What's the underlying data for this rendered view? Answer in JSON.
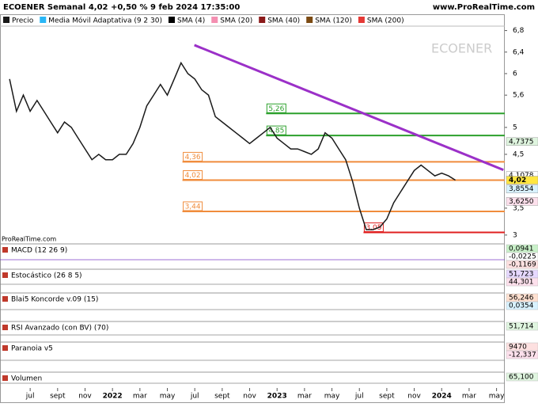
{
  "header": {
    "title": "ECOENER Semanal 4,02 +0,50 % 9 feb 2024 17:35:00",
    "site": "www.ProRealTime.com"
  },
  "chart_data": {
    "type": "line",
    "watermark": "ECOENER",
    "source": "ProRealTime.com",
    "x": [
      -1.5,
      -1,
      -0.5,
      0,
      0.5,
      1,
      1.5,
      2,
      2.5,
      3,
      3.5,
      4,
      4.5,
      5,
      5.5,
      6,
      6.5,
      7,
      7.5,
      8,
      8.5,
      9,
      9.5,
      10,
      10.5,
      11,
      11.5,
      12,
      12.5,
      13,
      13.5,
      14,
      14.5,
      15,
      15.5,
      16,
      16.5,
      17,
      17.5,
      18,
      18.5,
      19,
      19.5,
      20,
      20.5,
      21,
      21.5,
      22,
      22.5,
      23,
      23.5,
      24,
      24.5,
      25,
      25.5,
      26,
      26.5,
      27,
      27.5,
      28,
      28.5,
      29,
      29.5,
      30,
      30.5,
      31
    ],
    "series": [
      {
        "name": "Precio",
        "color": "#1a1a1a",
        "values": [
          5.9,
          5.3,
          5.6,
          5.3,
          5.5,
          5.3,
          5.1,
          4.9,
          5.1,
          5.0,
          4.8,
          4.6,
          4.4,
          4.5,
          4.4,
          4.4,
          4.5,
          4.5,
          4.7,
          5.0,
          5.4,
          5.6,
          5.8,
          5.6,
          5.9,
          6.2,
          6.0,
          5.9,
          5.7,
          5.6,
          5.2,
          5.1,
          5.0,
          4.9,
          4.8,
          4.7,
          4.8,
          4.9,
          5.0,
          4.8,
          4.7,
          4.6,
          4.6,
          4.55,
          4.5,
          4.6,
          4.9,
          4.8,
          4.6,
          4.4,
          4.0,
          3.5,
          3.1,
          3.1,
          3.15,
          3.3,
          3.6,
          3.8,
          4.0,
          4.2,
          4.3,
          4.2,
          4.1,
          4.15,
          4.1,
          4.02
        ]
      }
    ],
    "legend": [
      {
        "name": "Media Móvil Adaptativa (9 2 30)",
        "color": "#29b6f6"
      },
      {
        "name": "SMA (4)",
        "color": "#000000"
      },
      {
        "name": "SMA (20)",
        "color": "#f48fb1"
      },
      {
        "name": "SMA (40)",
        "color": "#8b1a1a"
      },
      {
        "name": "SMA (120)",
        "color": "#7b4a12"
      },
      {
        "name": "SMA (200)",
        "color": "#e53935"
      }
    ],
    "xlim": [
      -2.2,
      34.6
    ],
    "ylim": [
      2.88,
      7.0
    ],
    "yticks": [
      3,
      {
        "value": 3.5,
        "label": "3,5"
      },
      {
        "value": 4.5,
        "label": "4,5"
      },
      5,
      {
        "value": 5.6,
        "label": "5,6"
      },
      6,
      {
        "value": 6.4,
        "label": "6,4"
      },
      {
        "value": 6.8,
        "label": "6,8"
      }
    ],
    "xticks": [
      {
        "value": 0,
        "label": "jul"
      },
      {
        "value": 2,
        "label": "sept"
      },
      {
        "value": 4,
        "label": "nov"
      },
      {
        "value": 6,
        "label": "2022"
      },
      {
        "value": 8,
        "label": "mar"
      },
      {
        "value": 10,
        "label": "may"
      },
      {
        "value": 12,
        "label": "jul"
      },
      {
        "value": 14,
        "label": "sept"
      },
      {
        "value": 16,
        "label": "nov"
      },
      {
        "value": 18,
        "label": "2023"
      },
      {
        "value": 20,
        "label": "mar"
      },
      {
        "value": 22,
        "label": "may"
      },
      {
        "value": 24,
        "label": "jul"
      },
      {
        "value": 26,
        "label": "sept"
      },
      {
        "value": 28,
        "label": "nov"
      },
      {
        "value": 30,
        "label": "2024"
      },
      {
        "value": 32,
        "label": "mar"
      },
      {
        "value": 34,
        "label": "may"
      }
    ],
    "levels": [
      {
        "value": 5.26,
        "label": "5,26",
        "from": 17.2,
        "color": "#2ca02c"
      },
      {
        "value": 4.85,
        "label": "4,85",
        "from": 17.2,
        "color": "#2ca02c"
      },
      {
        "value": 4.36,
        "label": "4,36",
        "from": 11.1,
        "color": "#f08c3c"
      },
      {
        "value": 4.02,
        "label": "4,02",
        "from": 11.1,
        "color": "#f08c3c"
      },
      {
        "value": 3.44,
        "label": "3,44",
        "from": 11.1,
        "color": "#f08c3c"
      },
      {
        "value": 3.05,
        "label": "3,05",
        "from": 24.3,
        "color": "#e02020"
      }
    ],
    "trendline": {
      "color": "#9b30c8",
      "x": [
        11.97,
        34.5
      ],
      "y": [
        6.53,
        4.21
      ]
    },
    "price_tags": [
      {
        "value": 4.7375,
        "label": "4,7375",
        "color": "#dff5df"
      },
      {
        "value": 4.1078,
        "label": "4,1078",
        "color": "#ffffff"
      },
      {
        "value": 4.02,
        "label": "4,02",
        "color": "#ffe640"
      },
      {
        "value": 3.8554,
        "label": "3,8554",
        "color": "#d8f2ff"
      },
      {
        "value": 3.625,
        "label": "3,6250",
        "color": "#fde0ec"
      }
    ]
  },
  "panels": [
    {
      "title": "MACD (12 26 9)",
      "tags": [
        {
          "label": "0,0941",
          "color": "#c8f0c8"
        },
        {
          "label": "-0,0225",
          "color": "#ffffff"
        },
        {
          "label": "-0,1169",
          "color": "#fde0e0"
        }
      ]
    },
    {
      "title": "Estocástico (26 8 5)",
      "tags": [
        {
          "label": "51,723",
          "color": "#e6d8ff"
        },
        {
          "label": "44,301",
          "color": "#fde0ec"
        }
      ]
    },
    {
      "title": "Blai5 Koncorde v.09 (15)",
      "tags": [
        {
          "label": "56,246",
          "color": "#ffe0d0"
        },
        {
          "label": "0,0354",
          "color": "#d8f2ff"
        }
      ]
    },
    {
      "title": "RSI Avanzado (con BV) (70)",
      "tags": [
        {
          "label": "51,714",
          "color": "#dff5df"
        }
      ]
    },
    {
      "title": "Paranoia v5",
      "tags": [
        {
          "label": "9470",
          "color": "#fde0e0"
        },
        {
          "label": "-12,337",
          "color": "#fde0ec"
        }
      ]
    },
    {
      "title": "Volumen",
      "tags": [
        {
          "label": "65,100",
          "color": "#dff5df"
        }
      ]
    }
  ]
}
